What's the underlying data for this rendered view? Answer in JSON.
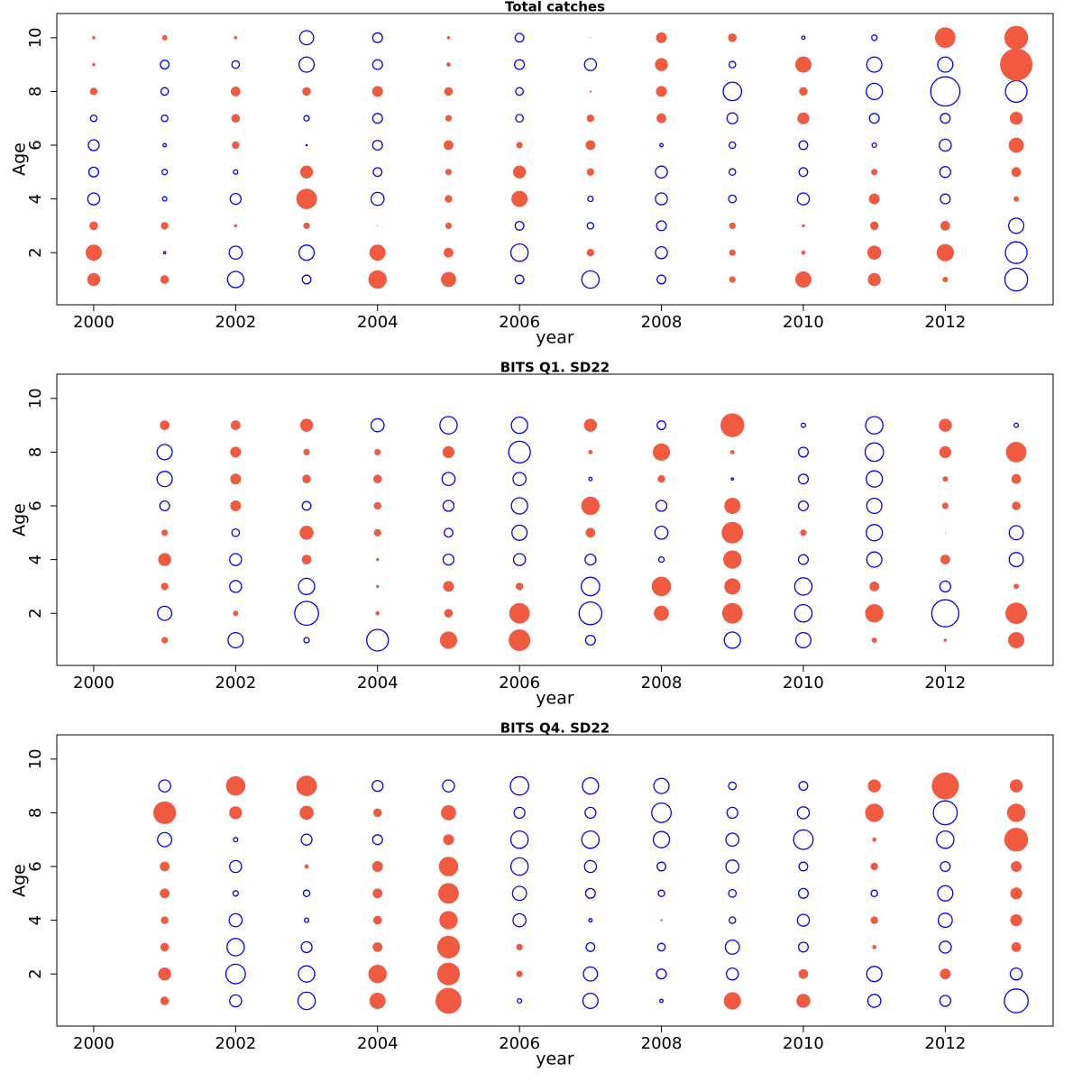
{
  "chart_data": [
    {
      "type": "bubble",
      "title": "Total catches",
      "xlabel": "year",
      "ylabel": "Age",
      "positive_color": "#f05a40",
      "negative_color": "#0000ff",
      "xlim": [
        1999.48,
        2013.52
      ],
      "xticks": [
        2000,
        2002,
        2004,
        2006,
        2008,
        2010,
        2012
      ],
      "ylim": [
        0.06,
        10.9
      ],
      "yticks": [
        2,
        4,
        6,
        8,
        10
      ],
      "x": [
        2000,
        2001,
        2002,
        2003,
        2004,
        2005,
        2006,
        2007,
        2008,
        2009,
        2010,
        2011,
        2012,
        2013
      ],
      "y": [
        1,
        2,
        3,
        4,
        5,
        6,
        7,
        8,
        9,
        10
      ],
      "values": [
        [
          1.2,
          0.8,
          -1.5,
          -0.8,
          1.7,
          1.4,
          -0.8,
          -1.6,
          -0.8,
          0.6,
          1.5,
          1.2,
          0.5,
          -2.1
        ],
        [
          1.5,
          -0.2,
          -1.2,
          -1.4,
          1.5,
          0.9,
          -1.6,
          0.7,
          -1.1,
          0.6,
          0.4,
          1.3,
          1.6,
          -2.0
        ],
        [
          0.8,
          0.7,
          0.3,
          0.6,
          0.1,
          0.6,
          -0.8,
          -0.6,
          -0.9,
          0.6,
          0.3,
          0.8,
          0.9,
          -1.4
        ],
        [
          -1.1,
          -0.4,
          -1.0,
          1.9,
          -1.2,
          0.7,
          1.5,
          -0.5,
          -1.1,
          -0.7,
          -1.1,
          1.0,
          -0.9,
          0.5
        ],
        [
          -0.9,
          -0.5,
          -0.4,
          1.2,
          -0.8,
          0.6,
          1.2,
          0.7,
          -1.1,
          -0.6,
          -0.8,
          0.6,
          -1.0,
          0.9
        ],
        [
          -1.0,
          -0.3,
          0.7,
          -0.05,
          -0.9,
          0.9,
          0.6,
          0.9,
          -0.3,
          -0.6,
          -0.8,
          -0.4,
          -1.1,
          1.4
        ],
        [
          -0.6,
          -0.6,
          0.8,
          -0.5,
          -0.9,
          0.6,
          -0.7,
          0.7,
          0.9,
          -1.0,
          1.1,
          -0.9,
          -0.9,
          1.2
        ],
        [
          0.7,
          -0.7,
          0.9,
          0.8,
          1.0,
          0.8,
          -0.7,
          0.2,
          1.0,
          -1.7,
          0.8,
          -1.5,
          -2.7,
          -2.0
        ],
        [
          0.3,
          -0.8,
          -0.7,
          -1.4,
          -0.9,
          0.4,
          -0.9,
          -1.1,
          1.2,
          -0.6,
          1.5,
          -1.4,
          -1.4,
          3.0
        ],
        [
          0.3,
          0.5,
          0.3,
          -1.3,
          -0.9,
          0.3,
          -0.8,
          0.1,
          1.0,
          0.8,
          -0.3,
          -0.5,
          1.9,
          2.2
        ]
      ]
    },
    {
      "type": "bubble",
      "title": "BITS Q1. SD22",
      "xlabel": "year",
      "ylabel": "Age",
      "positive_color": "#f05a40",
      "negative_color": "#0000ff",
      "xlim": [
        1999.48,
        2013.52
      ],
      "xticks": [
        2000,
        2002,
        2004,
        2006,
        2008,
        2010,
        2012
      ],
      "ylim": [
        0.06,
        10.9
      ],
      "yticks": [
        2,
        4,
        6,
        8,
        10
      ],
      "x": [
        2001,
        2002,
        2003,
        2004,
        2005,
        2006,
        2007,
        2008,
        2009,
        2010,
        2011,
        2012,
        2013
      ],
      "y": [
        1,
        2,
        3,
        4,
        5,
        6,
        7,
        8,
        9
      ],
      "values": [
        [
          0.6,
          -1.4,
          -0.5,
          -2.0,
          1.6,
          2.0,
          -0.9,
          null,
          -1.5,
          -1.4,
          0.5,
          0.3,
          1.5
        ],
        [
          -1.3,
          0.5,
          -2.2,
          0.4,
          0.8,
          1.9,
          -2.1,
          1.4,
          1.9,
          -1.6,
          1.7,
          -2.5,
          2.0
        ],
        [
          0.7,
          -1.1,
          -1.5,
          0.3,
          1.0,
          0.7,
          -1.7,
          1.8,
          1.5,
          -1.6,
          0.9,
          -1.0,
          0.5
        ],
        [
          1.2,
          -1.1,
          0.9,
          0.3,
          -1.0,
          -1.1,
          -1.0,
          -0.5,
          1.7,
          -0.9,
          -1.4,
          0.9,
          -1.3
        ],
        [
          0.6,
          -0.7,
          1.3,
          0.7,
          -0.8,
          -1.4,
          0.9,
          -1.2,
          2.0,
          0.6,
          -1.5,
          0.1,
          -1.3
        ],
        [
          -0.9,
          1.0,
          -0.8,
          0.7,
          -1.0,
          -1.5,
          1.7,
          -1.0,
          1.5,
          -0.9,
          -1.4,
          0.6,
          0.8
        ],
        [
          -1.4,
          1.0,
          0.8,
          0.8,
          -1.2,
          -1.2,
          -0.3,
          0.7,
          -0.2,
          -0.9,
          -1.5,
          0.5,
          0.9
        ],
        [
          -1.4,
          1.0,
          0.6,
          0.6,
          1.1,
          -2.0,
          0.4,
          1.6,
          0.4,
          -0.9,
          -1.7,
          1.1,
          1.9
        ],
        [
          0.9,
          0.9,
          1.2,
          -1.2,
          -1.6,
          -1.5,
          1.2,
          -0.8,
          2.2,
          -0.4,
          -1.6,
          1.2,
          -0.4
        ]
      ]
    },
    {
      "type": "bubble",
      "title": "BITS Q4. SD22",
      "xlabel": "year",
      "ylabel": "Age",
      "positive_color": "#f05a40",
      "negative_color": "#0000ff",
      "xlim": [
        1999.48,
        2013.52
      ],
      "xticks": [
        2000,
        2002,
        2004,
        2006,
        2008,
        2010,
        2012
      ],
      "ylim": [
        0.06,
        10.9
      ],
      "yticks": [
        2,
        4,
        6,
        8,
        10
      ],
      "x": [
        2001,
        2002,
        2003,
        2004,
        2005,
        2006,
        2007,
        2008,
        2009,
        2010,
        2011,
        2012,
        2013
      ],
      "y": [
        1,
        2,
        3,
        4,
        5,
        6,
        7,
        8,
        9
      ],
      "values": [
        [
          0.8,
          -1.1,
          -1.6,
          1.5,
          2.4,
          -0.4,
          -1.4,
          -0.3,
          1.6,
          1.3,
          -1.2,
          -1.0,
          -2.2
        ],
        [
          1.2,
          -1.8,
          -1.5,
          1.7,
          2.1,
          0.6,
          -1.3,
          -0.9,
          -1.1,
          0.9,
          -1.4,
          1.0,
          -1.1
        ],
        [
          0.8,
          -1.6,
          -1.0,
          0.9,
          2.1,
          0.6,
          -0.8,
          -0.7,
          -1.3,
          -0.9,
          0.4,
          -1.1,
          0.9
        ],
        [
          0.7,
          -1.2,
          -0.4,
          0.8,
          1.7,
          -1.2,
          -0.3,
          0.2,
          -0.6,
          -1.1,
          0.7,
          -1.3,
          1.1
        ],
        [
          0.9,
          -0.5,
          -0.6,
          0.9,
          1.9,
          -1.3,
          -0.9,
          -0.6,
          -0.7,
          -0.9,
          -0.6,
          -1.4,
          1.1
        ],
        [
          0.9,
          -1.1,
          0.4,
          1.0,
          1.8,
          -1.6,
          -1.1,
          -0.8,
          -1.2,
          -0.8,
          0.7,
          -0.9,
          1.0
        ],
        [
          -1.3,
          -0.4,
          -1.0,
          -0.9,
          1.0,
          -1.6,
          -1.6,
          -1.5,
          -1.2,
          -1.8,
          0.4,
          -1.6,
          2.2
        ],
        [
          2.1,
          1.2,
          1.3,
          0.8,
          1.4,
          -1.0,
          -1.0,
          -1.8,
          -1.0,
          -1.1,
          1.7,
          -2.2,
          1.7
        ],
        [
          -1.1,
          1.8,
          1.9,
          -1.0,
          -1.1,
          -1.7,
          -1.5,
          -1.4,
          -0.7,
          -0.8,
          1.2,
          2.5,
          1.2
        ]
      ]
    }
  ]
}
